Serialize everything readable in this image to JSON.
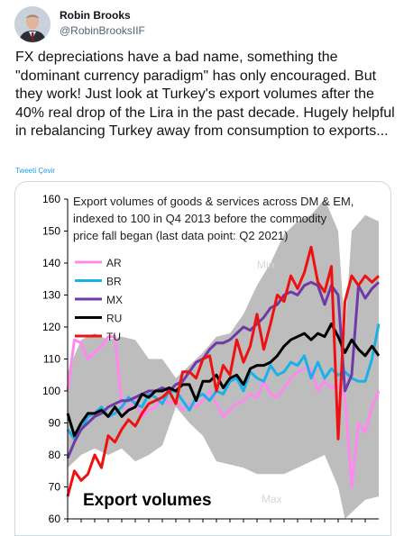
{
  "author": {
    "name": "Robin Brooks",
    "handle": "@RobinBrooksIIF"
  },
  "tweet": {
    "text": "FX depreciations have a bad name, something the \"dominant currency paradigm\" has only encouraged. But they work! Just look at Turkey's export volumes after the 40% real drop of the Lira in the past decade. Hugely helpful in rebalancing Turkey away from consumption to exports...",
    "translate_label": "Tweeti Çevir"
  },
  "chart_data": {
    "type": "line",
    "title_lines": [
      "Export volumes of goods & services across DM & EM,",
      "indexed to 100 in Q4 2013  before the commodity",
      "price fall began (last data point: Q2 2021)"
    ],
    "inset_label": "Export volumes",
    "band_labels": [
      "Min",
      "Max"
    ],
    "ylim": [
      60,
      160
    ],
    "yticks": [
      60,
      70,
      80,
      90,
      100,
      110,
      120,
      130,
      140,
      150,
      160
    ],
    "x_start": 2010.0,
    "x_end": 2021.5,
    "x_tick_positions": [
      2010.0,
      2010.5,
      2011.0,
      2011.5,
      2012.0,
      2012.5,
      2013.0,
      2013.5,
      2014.0,
      2014.5,
      2015.0,
      2015.5,
      2016.0,
      2016.5,
      2017.0,
      2017.5,
      2018.0,
      2018.5,
      2019.0,
      2019.5,
      2020.0,
      2020.5,
      2021.0
    ],
    "band": {
      "x": [
        2010.0,
        2010.5,
        2011.0,
        2011.5,
        2012.0,
        2012.5,
        2013.0,
        2013.5,
        2014.0,
        2014.5,
        2015.0,
        2015.5,
        2016.0,
        2016.5,
        2017.0,
        2017.5,
        2018.0,
        2018.5,
        2019.0,
        2019.5,
        2020.0,
        2020.25,
        2020.5,
        2021.0,
        2021.5
      ],
      "upper": [
        106,
        116,
        118,
        116,
        117,
        116,
        110,
        110,
        104,
        108,
        112,
        117,
        118,
        124,
        133,
        140,
        149,
        153,
        155,
        160,
        150,
        118,
        150,
        155,
        153
      ],
      "lower": [
        76,
        80,
        82,
        80,
        82,
        78,
        80,
        83,
        95,
        90,
        86,
        78,
        77,
        76,
        74,
        74,
        74,
        76,
        78,
        80,
        70,
        60,
        62,
        66,
        67
      ]
    },
    "series": [
      {
        "name": "AR",
        "color": "#ff88ee",
        "x": [
          2010.0,
          2010.25,
          2010.5,
          2010.75,
          2011.0,
          2011.25,
          2011.5,
          2011.75,
          2012.0,
          2012.25,
          2012.5,
          2012.75,
          2013.0,
          2013.25,
          2013.5,
          2013.75,
          2014.0,
          2014.25,
          2014.5,
          2014.75,
          2015.0,
          2015.25,
          2015.5,
          2015.75,
          2016.0,
          2016.25,
          2016.5,
          2016.75,
          2017.0,
          2017.25,
          2017.5,
          2017.75,
          2018.0,
          2018.25,
          2018.5,
          2018.75,
          2019.0,
          2019.25,
          2019.5,
          2019.75,
          2020.0,
          2020.25,
          2020.5,
          2020.75,
          2021.0,
          2021.25,
          2021.5
        ],
        "values": [
          100,
          116,
          115,
          110,
          112,
          114,
          117,
          117,
          95,
          94,
          97,
          92,
          94,
          95,
          98,
          96,
          97,
          94,
          96,
          95,
          97,
          100,
          96,
          92,
          94,
          96,
          97,
          99,
          98,
          103,
          99,
          98,
          101,
          104,
          106,
          107,
          107,
          100,
          103,
          101,
          102,
          98,
          70,
          90,
          87,
          95,
          100
        ]
      },
      {
        "name": "BR",
        "color": "#1ab0e8",
        "x": [
          2010.0,
          2010.25,
          2010.5,
          2010.75,
          2011.0,
          2011.25,
          2011.5,
          2011.75,
          2012.0,
          2012.25,
          2012.5,
          2012.75,
          2013.0,
          2013.25,
          2013.5,
          2013.75,
          2014.0,
          2014.25,
          2014.5,
          2014.75,
          2015.0,
          2015.25,
          2015.5,
          2015.75,
          2016.0,
          2016.25,
          2016.5,
          2016.75,
          2017.0,
          2017.25,
          2017.5,
          2017.75,
          2018.0,
          2018.25,
          2018.5,
          2018.75,
          2019.0,
          2019.25,
          2019.5,
          2019.75,
          2020.0,
          2020.25,
          2020.5,
          2020.75,
          2021.0,
          2021.25,
          2021.5
        ],
        "values": [
          88,
          85,
          88,
          92,
          93,
          95,
          92,
          93,
          95,
          98,
          96,
          95,
          99,
          98,
          96,
          100,
          100,
          97,
          94,
          98,
          99,
          97,
          100,
          99,
          103,
          104,
          100,
          106,
          104,
          103,
          108,
          105,
          106,
          109,
          108,
          111,
          104,
          109,
          104,
          107,
          105,
          106,
          104,
          103,
          103,
          110,
          121
        ]
      },
      {
        "name": "MX",
        "color": "#6e3aa7",
        "x": [
          2010.0,
          2010.25,
          2010.5,
          2010.75,
          2011.0,
          2011.25,
          2011.5,
          2011.75,
          2012.0,
          2012.25,
          2012.5,
          2012.75,
          2013.0,
          2013.25,
          2013.5,
          2013.75,
          2014.0,
          2014.25,
          2014.5,
          2014.75,
          2015.0,
          2015.25,
          2015.5,
          2015.75,
          2016.0,
          2016.25,
          2016.5,
          2016.75,
          2017.0,
          2017.25,
          2017.5,
          2017.75,
          2018.0,
          2018.25,
          2018.5,
          2018.75,
          2019.0,
          2019.25,
          2019.5,
          2019.75,
          2020.0,
          2020.25,
          2020.5,
          2020.75,
          2021.0,
          2021.25,
          2021.5
        ],
        "values": [
          79,
          84,
          88,
          90,
          92,
          93,
          95,
          96,
          97,
          97,
          98,
          99,
          100,
          100,
          101,
          100,
          102,
          103,
          106,
          109,
          110,
          113,
          115,
          115,
          116,
          118,
          120,
          119,
          121,
          123,
          126,
          127,
          130,
          131,
          130,
          133,
          134,
          133,
          127,
          133,
          130,
          100,
          105,
          133,
          129,
          132,
          134
        ]
      },
      {
        "name": "RU",
        "color": "#000000",
        "x": [
          2010.0,
          2010.25,
          2010.5,
          2010.75,
          2011.0,
          2011.25,
          2011.5,
          2011.75,
          2012.0,
          2012.25,
          2012.5,
          2012.75,
          2013.0,
          2013.25,
          2013.5,
          2013.75,
          2014.0,
          2014.25,
          2014.5,
          2014.75,
          2015.0,
          2015.25,
          2015.5,
          2015.75,
          2016.0,
          2016.25,
          2016.5,
          2016.75,
          2017.0,
          2017.25,
          2017.5,
          2017.75,
          2018.0,
          2018.25,
          2018.5,
          2018.75,
          2019.0,
          2019.25,
          2019.5,
          2019.75,
          2020.0,
          2020.25,
          2020.5,
          2020.75,
          2021.0,
          2021.25,
          2021.5
        ],
        "values": [
          93,
          86,
          90,
          93,
          93,
          94,
          92,
          95,
          92,
          94,
          95,
          99,
          98,
          100,
          100,
          101,
          100,
          102,
          102,
          97,
          103,
          103,
          105,
          101,
          104,
          105,
          102,
          107,
          108,
          108,
          109,
          111,
          114,
          116,
          117,
          118,
          116,
          118,
          117,
          121,
          117,
          112,
          116,
          113,
          111,
          114,
          111
        ]
      },
      {
        "name": "TU",
        "color": "#ee1111",
        "x": [
          2010.0,
          2010.25,
          2010.5,
          2010.75,
          2011.0,
          2011.25,
          2011.5,
          2011.75,
          2012.0,
          2012.25,
          2012.5,
          2012.75,
          2013.0,
          2013.25,
          2013.5,
          2013.75,
          2014.0,
          2014.25,
          2014.5,
          2014.75,
          2015.0,
          2015.25,
          2015.5,
          2015.75,
          2016.0,
          2016.25,
          2016.5,
          2016.75,
          2017.0,
          2017.25,
          2017.5,
          2017.75,
          2018.0,
          2018.25,
          2018.5,
          2018.75,
          2019.0,
          2019.25,
          2019.5,
          2019.75,
          2020.0,
          2020.25,
          2020.5,
          2020.75,
          2021.0,
          2021.25,
          2021.5
        ],
        "values": [
          67,
          75,
          72,
          74,
          80,
          76,
          86,
          84,
          88,
          91,
          89,
          93,
          96,
          97,
          98,
          100,
          96,
          106,
          106,
          104,
          110,
          111,
          100,
          108,
          105,
          116,
          109,
          114,
          124,
          113,
          121,
          130,
          128,
          136,
          132,
          137,
          145,
          134,
          131,
          139,
          85,
          128,
          136,
          133,
          136,
          134,
          136
        ]
      }
    ]
  }
}
